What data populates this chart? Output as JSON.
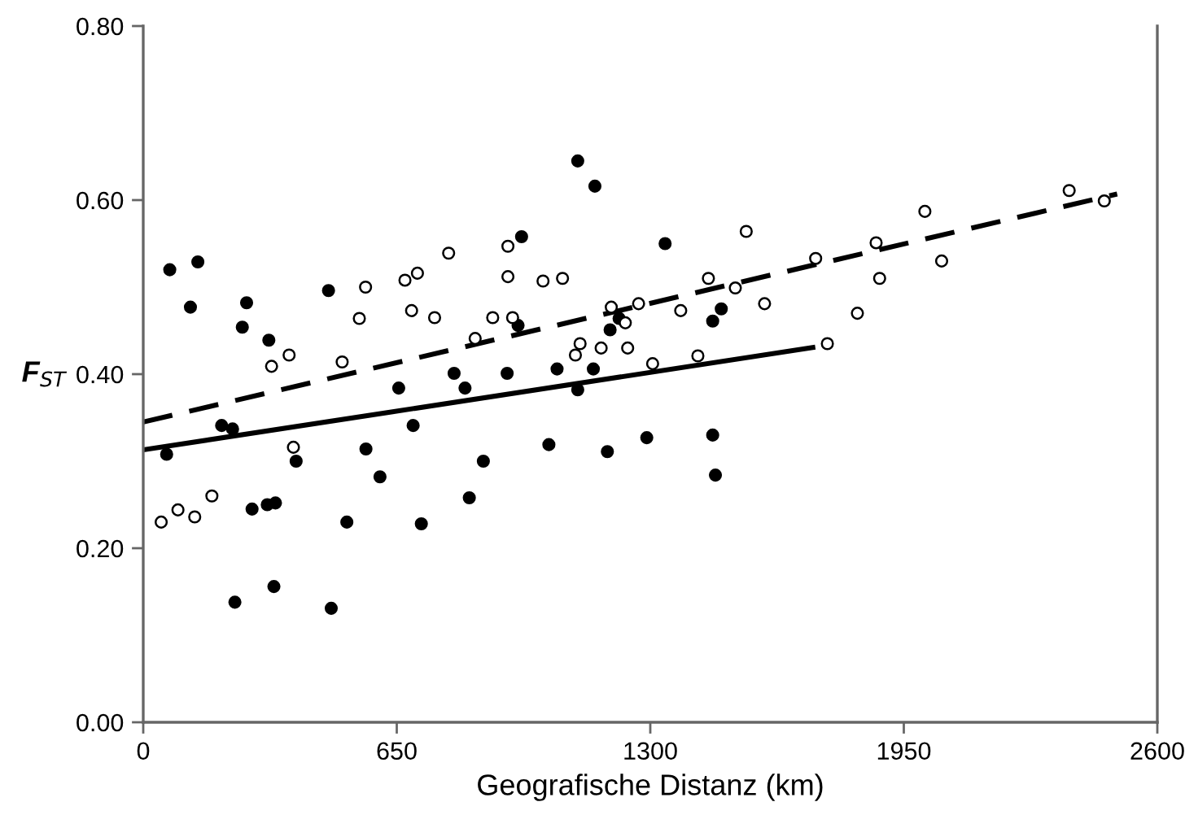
{
  "chart_data": {
    "type": "scatter",
    "xlabel": "Geografische Distanz (km)",
    "ylabel": "F$_{ST}$",
    "xlim": [
      0,
      2600
    ],
    "ylim": [
      0,
      0.8
    ],
    "xticks": [
      0,
      650,
      1300,
      1950,
      2600
    ],
    "yticks": [
      {
        "value": 0,
        "label": "0.00"
      },
      {
        "value": 0.2,
        "label": "0.20"
      },
      {
        "value": 0.4,
        "label": "0.40"
      },
      {
        "value": 0.6,
        "label": "0.60"
      },
      {
        "value": 0.8,
        "label": "0.80"
      }
    ],
    "grid": false,
    "legend": false,
    "marker": "circle",
    "series": [
      {
        "color": "#000000",
        "x": [
          68,
          140,
          121,
          265,
          254,
          322,
          201,
          229,
          475,
          655,
          692,
          797,
          825,
          970,
          961,
          933,
          1114,
          1158,
          1061,
          1114,
          1154,
          1197,
          1220,
          1338,
          1040,
          1190,
          1291,
          571,
          60,
          1482,
          1460,
          1460,
          1467,
          392,
          607,
          872,
          279,
          318,
          339,
          522,
          713,
          836,
          235,
          335,
          482
        ],
        "values": [
          0.52,
          0.529,
          0.477,
          0.482,
          0.454,
          0.439,
          0.341,
          0.337,
          0.496,
          0.384,
          0.341,
          0.401,
          0.384,
          0.558,
          0.456,
          0.401,
          0.645,
          0.616,
          0.406,
          0.382,
          0.406,
          0.451,
          0.464,
          0.55,
          0.319,
          0.311,
          0.327,
          0.314,
          0.308,
          0.475,
          0.461,
          0.33,
          0.284,
          0.3,
          0.282,
          0.3,
          0.245,
          0.25,
          0.252,
          0.23,
          0.228,
          0.258,
          0.138,
          0.156,
          0.131
        ]
      },
      {
        "color": "#ffffff",
        "x": [
          329,
          374,
          510,
          554,
          570,
          671,
          703,
          688,
          747,
          783,
          851,
          896,
          935,
          935,
          947,
          1025,
          1075,
          1120,
          1108,
          1174,
          1200,
          1236,
          1242,
          1270,
          1306,
          385,
          1449,
          1518,
          1378,
          1593,
          1546,
          1724,
          1879,
          1888,
          1831,
          2004,
          2047,
          2374,
          2464,
          1422,
          1754,
          46,
          89,
          132,
          176
        ],
        "values": [
          0.409,
          0.422,
          0.414,
          0.464,
          0.5,
          0.508,
          0.516,
          0.473,
          0.465,
          0.539,
          0.441,
          0.465,
          0.547,
          0.512,
          0.465,
          0.507,
          0.51,
          0.435,
          0.422,
          0.43,
          0.477,
          0.459,
          0.43,
          0.481,
          0.412,
          0.316,
          0.51,
          0.499,
          0.473,
          0.481,
          0.564,
          0.533,
          0.551,
          0.51,
          0.47,
          0.587,
          0.53,
          0.611,
          0.599,
          0.421,
          0.435,
          0.23,
          0.244,
          0.236,
          0.26
        ]
      },
      {
        "type": "line",
        "color": "#000000",
        "line_style": "solid",
        "marker": "none",
        "x": [
          0,
          1723
        ],
        "values": [
          0.313,
          0.431
        ]
      },
      {
        "type": "line",
        "color": "#000000",
        "line_style": "dashed",
        "marker": "none",
        "x": [
          0,
          2497
        ],
        "values": [
          0.345,
          0.607
        ]
      }
    ]
  }
}
